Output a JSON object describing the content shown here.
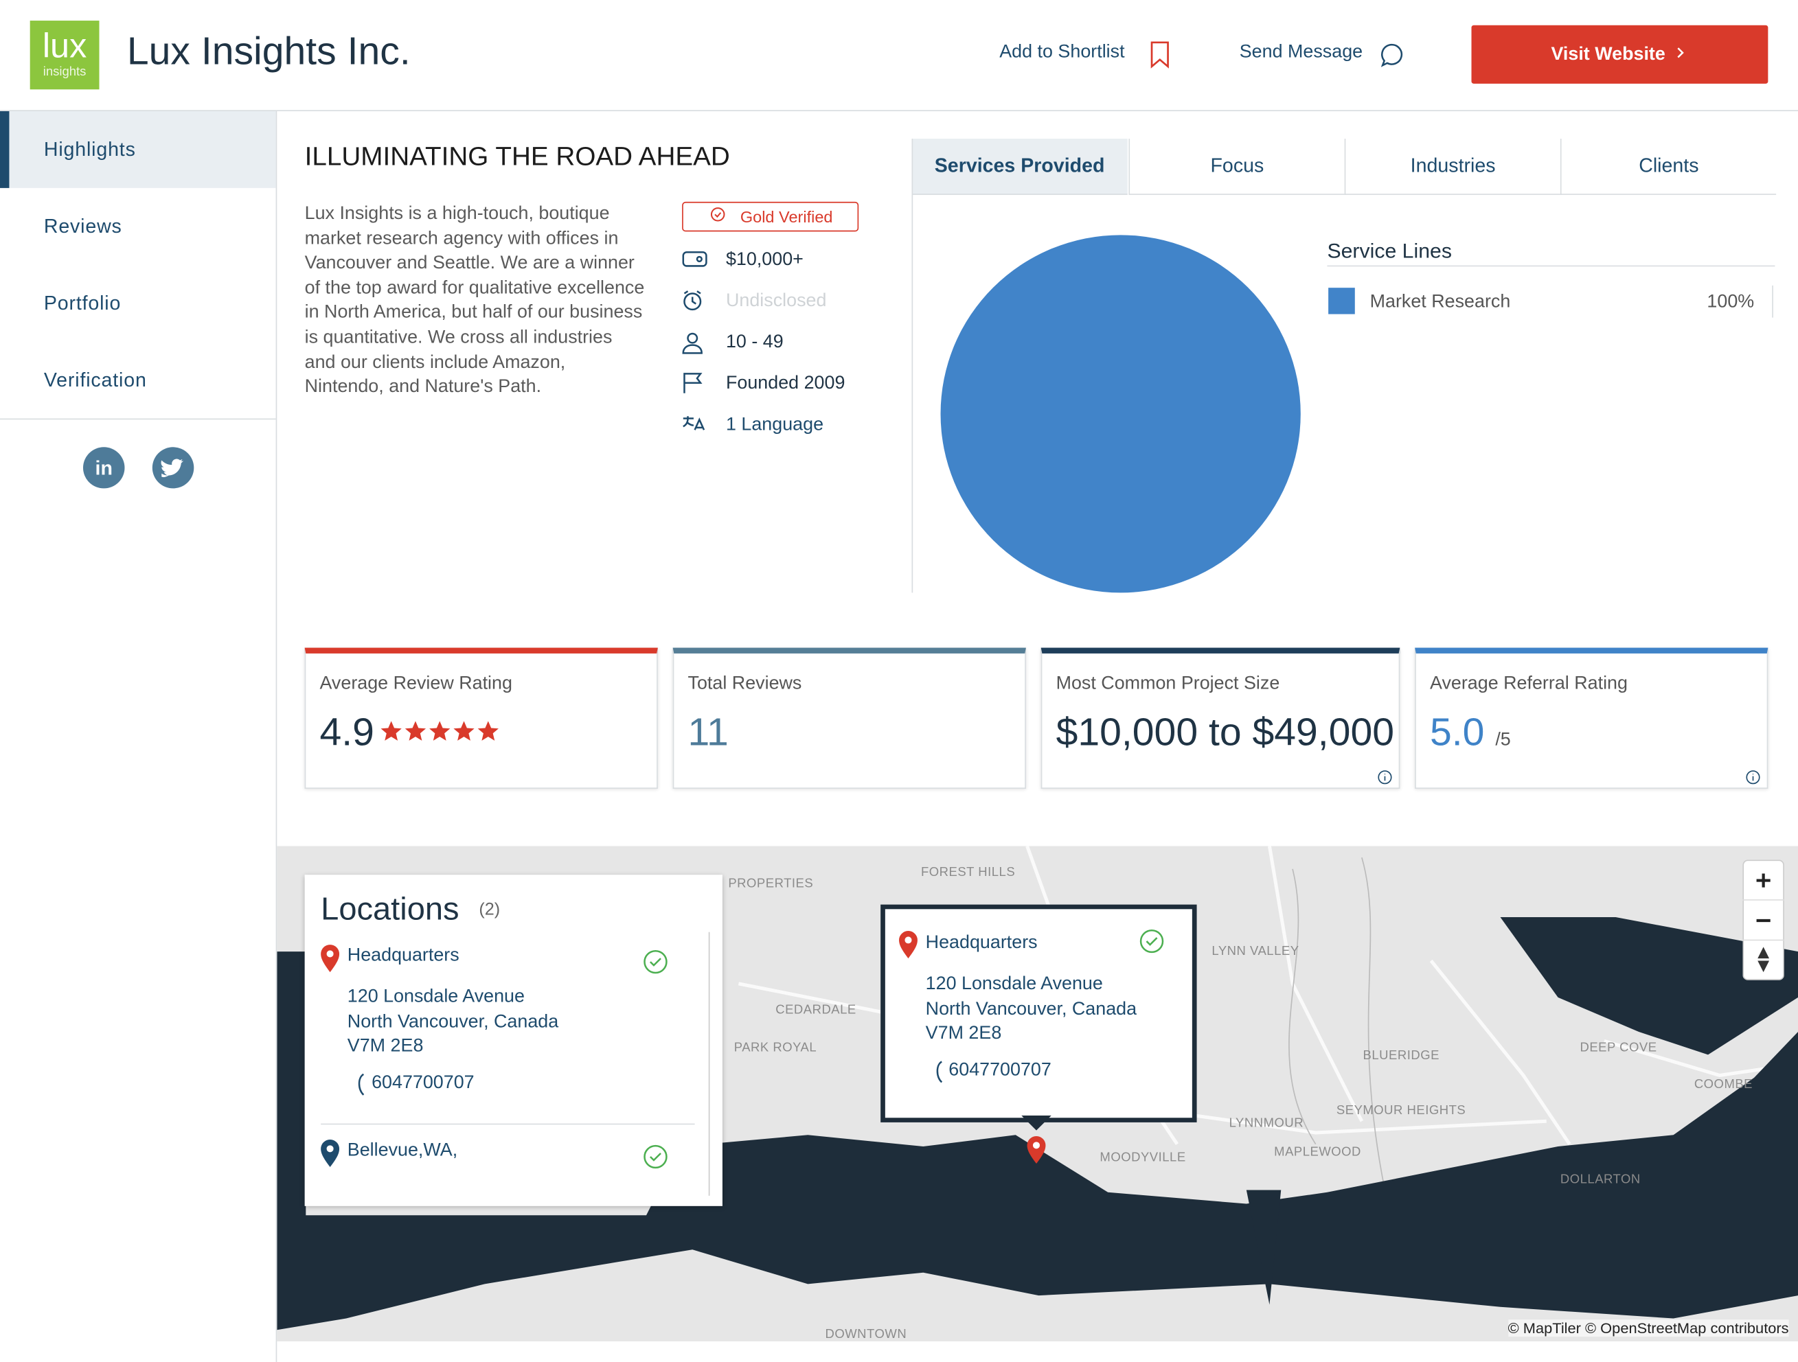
{
  "header": {
    "logo_text": "lux",
    "logo_sub": "insights",
    "company": "Lux Insights Inc.",
    "shortlist": "Add to Shortlist",
    "message": "Send Message",
    "visit": "Visit Website"
  },
  "sidebar": {
    "nav": [
      "Highlights",
      "Reviews",
      "Portfolio",
      "Verification"
    ]
  },
  "summary": {
    "title": "ILLUMINATING THE ROAD AHEAD",
    "description": "Lux Insights is a high-touch, boutique market research agency with offices in Vancouver and Seattle. We are a winner of the top award for qualitative excellence in North America, but half of our business is quantitative. We cross all industries and our clients include Amazon, Nintendo, and Nature's Path.",
    "badge": "Gold Verified",
    "facts": [
      "$10,000+",
      "Undisclosed",
      "10 - 49",
      "Founded 2009",
      "1 Language"
    ]
  },
  "tabs": [
    "Services Provided",
    "Focus",
    "Industries",
    "Clients"
  ],
  "chart_data": {
    "type": "pie",
    "title": "Service Lines",
    "categories": [
      "Market Research"
    ],
    "values": [
      100
    ],
    "value_labels": [
      "100%"
    ],
    "colors": [
      "#4184c9"
    ]
  },
  "stats": [
    {
      "label": "Average Review Rating",
      "value": "4.9"
    },
    {
      "label": "Total Reviews",
      "value": "11"
    },
    {
      "label": "Most Common Project Size",
      "value": "$10,000 to $49,000"
    },
    {
      "label": "Average Referral Rating",
      "value": "5.0",
      "suffix": "/5"
    }
  ],
  "locations": {
    "title": "Locations",
    "count": "(2)",
    "items": [
      {
        "name": "Headquarters",
        "address": [
          "120 Lonsdale Avenue",
          "North Vancouver, Canada",
          "V7M 2E8"
        ],
        "phone": "6047700707"
      },
      {
        "name": "Bellevue,WA,"
      }
    ]
  },
  "map": {
    "labels": [
      "PROPERTIES",
      "FOREST HILLS",
      "LYNN VALLEY",
      "CEDARDALE",
      "PARK ROYAL",
      "BLUERIDGE",
      "DEEP COVE",
      "SEYMOUR HEIGHTS",
      "LYNNMOUR",
      "MAPLEWOOD",
      "MOODYVILLE",
      "DOLLARTON",
      "COOMBE",
      "DOWNTOWN"
    ],
    "attribution": "© MapTiler © OpenStreetMap contributors"
  }
}
